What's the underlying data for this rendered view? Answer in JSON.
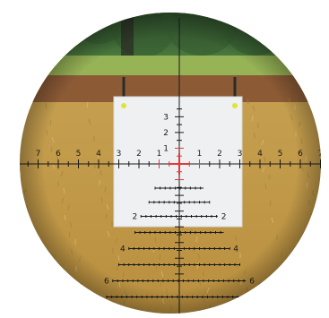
{
  "image": {
    "kind": "rifle-scope-reticle-view",
    "reticle_color": "#1a1a1a",
    "center_color": "#e03a3a",
    "target_paper_color": "#eef0f2",
    "grass_color": "#c9a24f",
    "foliage_color": "#3e6a36",
    "backstop_color": "#8c5b36"
  },
  "reticle": {
    "horizontal_labels": [
      "7",
      "6",
      "5",
      "4",
      "3",
      "2",
      "1",
      "1",
      "2",
      "3",
      "4",
      "5",
      "6",
      "7"
    ],
    "vertical_top_labels": [
      "3",
      "2",
      "1"
    ],
    "lower_labels": [
      "2",
      "2",
      "4",
      "4",
      "6",
      "6"
    ]
  }
}
